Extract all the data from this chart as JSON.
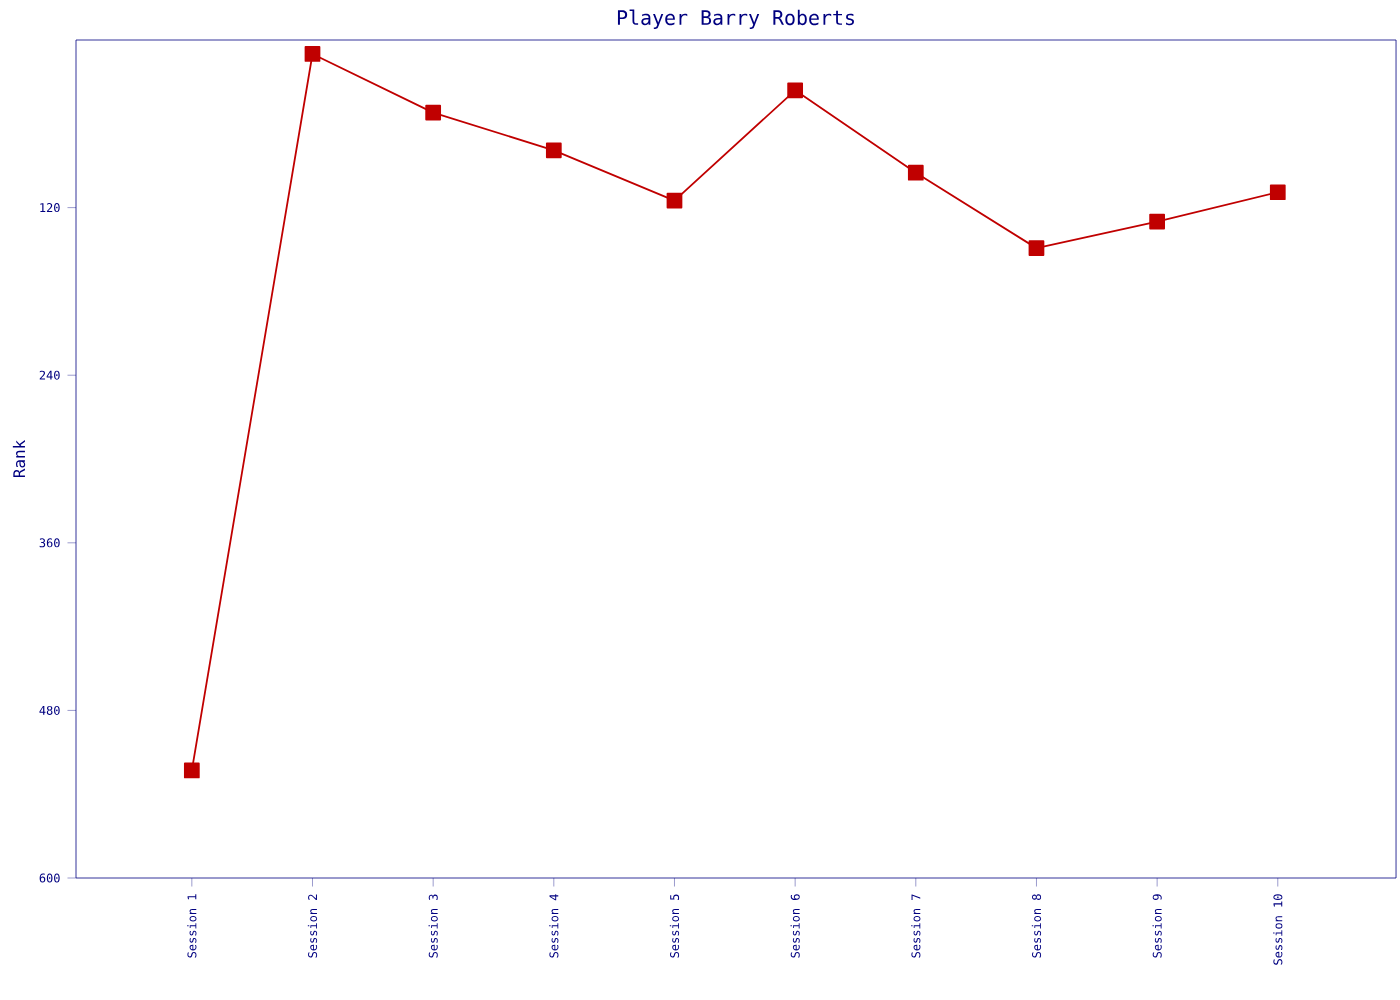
{
  "chart_data": {
    "type": "line",
    "title": "Player Barry Roberts",
    "ylabel": "Rank",
    "categories": [
      "Session 1",
      "Session 2",
      "Session 3",
      "Session 4",
      "Session 5",
      "Session 6",
      "Session 7",
      "Session 8",
      "Session 9",
      "Session 10"
    ],
    "series": [
      {
        "color": "#c00000",
        "values": [
          523,
          10,
          52,
          79,
          115,
          36,
          95,
          149,
          130,
          109
        ]
      }
    ],
    "ylim": [
      600,
      0
    ],
    "yticks": [
      120,
      240,
      360,
      480,
      600
    ],
    "marker": "square",
    "line_style": "solid"
  }
}
